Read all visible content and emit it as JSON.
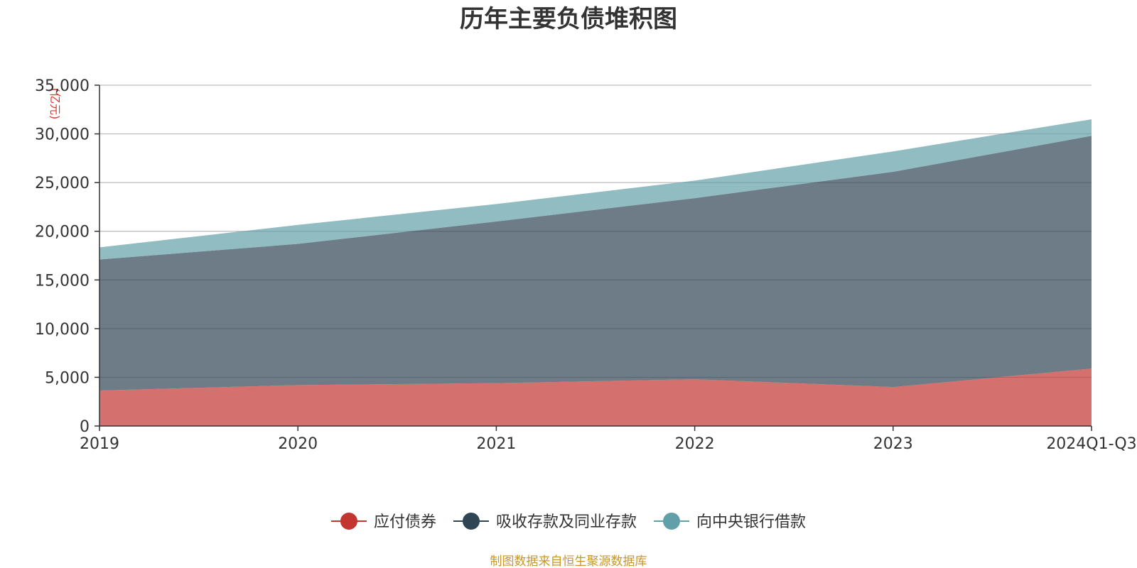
{
  "chart_data": {
    "type": "area",
    "stacked": true,
    "title": "历年主要负债堆积图",
    "unit": "(亿元)",
    "categories": [
      "2019",
      "2020",
      "2021",
      "2022",
      "2023",
      "2024Q1-Q3"
    ],
    "series": [
      {
        "name": "应付债券",
        "color": "#c23531",
        "values": [
          3650,
          4200,
          4400,
          4800,
          4000,
          5900
        ]
      },
      {
        "name": "吸收存款及同业存款",
        "color": "#2f4554",
        "values": [
          13450,
          14500,
          16600,
          18600,
          22100,
          23900
        ]
      },
      {
        "name": "向中央银行借款",
        "color": "#61a0a8",
        "values": [
          1250,
          1950,
          1800,
          1800,
          2100,
          1700
        ]
      }
    ],
    "ylim": [
      0,
      35000
    ],
    "yticks": [
      0,
      5000,
      10000,
      15000,
      20000,
      25000,
      30000,
      35000
    ],
    "ytick_labels": [
      "0",
      "5,000",
      "10,000",
      "15,000",
      "20,000",
      "25,000",
      "30,000",
      "35,000"
    ],
    "grid": true,
    "legend_position": "bottom-center",
    "source": "制图数据来自恒生聚源数据库"
  }
}
